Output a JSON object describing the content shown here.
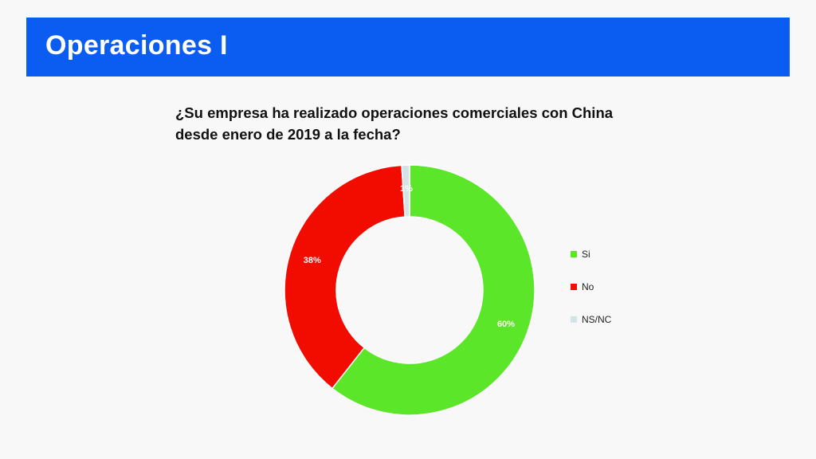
{
  "header": {
    "title": "Operaciones I"
  },
  "question": {
    "line1": "¿Su empresa ha realizado operaciones comerciales con China",
    "line2": "desde enero de 2019 a la fecha?"
  },
  "chart_data": {
    "type": "pie",
    "donut": true,
    "categories": [
      "Si",
      "No",
      "NS/NC"
    ],
    "values": [
      60,
      38,
      1
    ],
    "labels": [
      "60%",
      "38%",
      "1%"
    ],
    "colors": [
      "#5ce629",
      "#f20c00",
      "#d4e3e6"
    ],
    "legend_position": "right"
  }
}
